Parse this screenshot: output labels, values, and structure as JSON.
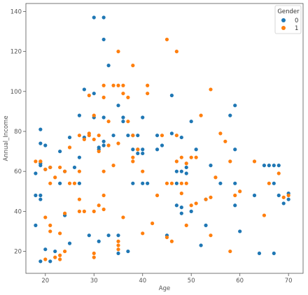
{
  "chart_data": {
    "type": "scatter",
    "xlabel": "Age",
    "ylabel": "Annual_Income",
    "xlim": [
      16,
      73
    ],
    "ylim": [
      9,
      144
    ],
    "xticks": [
      20,
      30,
      40,
      50,
      60,
      70
    ],
    "yticks": [
      20,
      40,
      60,
      80,
      100,
      120,
      140
    ],
    "grid": false,
    "legend": {
      "title": "Gender",
      "placement": "top-right",
      "entries": [
        {
          "label": "0",
          "color": "#1f77b4"
        },
        {
          "label": "1",
          "color": "#ff7f0e"
        }
      ]
    },
    "series": [
      {
        "name": "0",
        "color": "#1f77b4",
        "points": [
          [
            18,
            33
          ],
          [
            18,
            48
          ],
          [
            18,
            59
          ],
          [
            19,
            81
          ],
          [
            19,
            74
          ],
          [
            19,
            64
          ],
          [
            19,
            63
          ],
          [
            19,
            48
          ],
          [
            19,
            46
          ],
          [
            19,
            15
          ],
          [
            20,
            73
          ],
          [
            20,
            61
          ],
          [
            20,
            21
          ],
          [
            21,
            62
          ],
          [
            21,
            15
          ],
          [
            22,
            20
          ],
          [
            23,
            70
          ],
          [
            23,
            54
          ],
          [
            24,
            60
          ],
          [
            24,
            38
          ],
          [
            25,
            77
          ],
          [
            25,
            24
          ],
          [
            26,
            62
          ],
          [
            27,
            88
          ],
          [
            27,
            67
          ],
          [
            27,
            54
          ],
          [
            28,
            101
          ],
          [
            28,
            77
          ],
          [
            29,
            28
          ],
          [
            30,
            137
          ],
          [
            30,
            99
          ],
          [
            30,
            87
          ],
          [
            31,
            71
          ],
          [
            31,
            72
          ],
          [
            31,
            25
          ],
          [
            32,
            137
          ],
          [
            32,
            126
          ],
          [
            32,
            87
          ],
          [
            32,
            73
          ],
          [
            32,
            75
          ],
          [
            33,
            113
          ],
          [
            33,
            28
          ],
          [
            34,
            78
          ],
          [
            35,
            93
          ],
          [
            35,
            28
          ],
          [
            35,
            19
          ],
          [
            36,
            87
          ],
          [
            36,
            85
          ],
          [
            37,
            78
          ],
          [
            37,
            20
          ],
          [
            38,
            71
          ],
          [
            38,
            78
          ],
          [
            38,
            54
          ],
          [
            39,
            69
          ],
          [
            39,
            71
          ],
          [
            39,
            78
          ],
          [
            40,
            87
          ],
          [
            40,
            71
          ],
          [
            40,
            69
          ],
          [
            40,
            54
          ],
          [
            41,
            54
          ],
          [
            43,
            78
          ],
          [
            43,
            71
          ],
          [
            44,
            73
          ],
          [
            45,
            28
          ],
          [
            46,
            98
          ],
          [
            46,
            79
          ],
          [
            47,
            60
          ],
          [
            47,
            43
          ],
          [
            47,
            54
          ],
          [
            48,
            77
          ],
          [
            48,
            60
          ],
          [
            48,
            39
          ],
          [
            48,
            42
          ],
          [
            49,
            62
          ],
          [
            49,
            59
          ],
          [
            50,
            85
          ],
          [
            50,
            40
          ],
          [
            51,
            71
          ],
          [
            52,
            23
          ],
          [
            53,
            33
          ],
          [
            53,
            46
          ],
          [
            54,
            63
          ],
          [
            56,
            54
          ],
          [
            58,
            88
          ],
          [
            59,
            93
          ],
          [
            59,
            71
          ],
          [
            59,
            54
          ],
          [
            59,
            43
          ],
          [
            60,
            30
          ],
          [
            63,
            48
          ],
          [
            64,
            19
          ],
          [
            65,
            63
          ],
          [
            66,
            63
          ],
          [
            67,
            63
          ],
          [
            67,
            54
          ],
          [
            67,
            19
          ],
          [
            68,
            63
          ],
          [
            68,
            48
          ],
          [
            69,
            44
          ],
          [
            70,
            46
          ],
          [
            70,
            49
          ]
        ]
      },
      {
        "name": "1",
        "color": "#ff7f0e",
        "points": [
          [
            18,
            65
          ],
          [
            19,
            65
          ],
          [
            19,
            65
          ],
          [
            20,
            61
          ],
          [
            20,
            37
          ],
          [
            20,
            16
          ],
          [
            21,
            54
          ],
          [
            21,
            30
          ],
          [
            21,
            33
          ],
          [
            21,
            62
          ],
          [
            22,
            57
          ],
          [
            22,
            17
          ],
          [
            23,
            62
          ],
          [
            23,
            29
          ],
          [
            23,
            18
          ],
          [
            23,
            16
          ],
          [
            24,
            60
          ],
          [
            24,
            39
          ],
          [
            24,
            20
          ],
          [
            25,
            72
          ],
          [
            25,
            54
          ],
          [
            26,
            54
          ],
          [
            27,
            60
          ],
          [
            27,
            46
          ],
          [
            27,
            40
          ],
          [
            27,
            78
          ],
          [
            28,
            76
          ],
          [
            28,
            40
          ],
          [
            29,
            98
          ],
          [
            29,
            79
          ],
          [
            29,
            78
          ],
          [
            30,
            88
          ],
          [
            30,
            76
          ],
          [
            30,
            40
          ],
          [
            30,
            19
          ],
          [
            30,
            17
          ],
          [
            31,
            70
          ],
          [
            31,
            43
          ],
          [
            31,
            78
          ],
          [
            32,
            103
          ],
          [
            32,
            97
          ],
          [
            32,
            60
          ],
          [
            32,
            48
          ],
          [
            32,
            41
          ],
          [
            33,
            85
          ],
          [
            33,
            73
          ],
          [
            34,
            103
          ],
          [
            34,
            63
          ],
          [
            35,
            120
          ],
          [
            35,
            103
          ],
          [
            35,
            74
          ],
          [
            35,
            21
          ],
          [
            35,
            23
          ],
          [
            35,
            25
          ],
          [
            36,
            99
          ],
          [
            36,
            103
          ],
          [
            36,
            37
          ],
          [
            37,
            97
          ],
          [
            37,
            85
          ],
          [
            38,
            113
          ],
          [
            38,
            78
          ],
          [
            38,
            67
          ],
          [
            38,
            65
          ],
          [
            39,
            71
          ],
          [
            40,
            60
          ],
          [
            40,
            29
          ],
          [
            41,
            103
          ],
          [
            41,
            99
          ],
          [
            42,
            34
          ],
          [
            43,
            48
          ],
          [
            44,
            78
          ],
          [
            45,
            126
          ],
          [
            45,
            54
          ],
          [
            45,
            27
          ],
          [
            46,
            25
          ],
          [
            46,
            54
          ],
          [
            47,
            120
          ],
          [
            47,
            78
          ],
          [
            47,
            65
          ],
          [
            48,
            67
          ],
          [
            48,
            49
          ],
          [
            48,
            54
          ],
          [
            49,
            64
          ],
          [
            49,
            33
          ],
          [
            49,
            54
          ],
          [
            50,
            67
          ],
          [
            50,
            43
          ],
          [
            51,
            44
          ],
          [
            51,
            67
          ],
          [
            52,
            88
          ],
          [
            53,
            46
          ],
          [
            54,
            101
          ],
          [
            54,
            47
          ],
          [
            54,
            28
          ],
          [
            55,
            57
          ],
          [
            56,
            79
          ],
          [
            57,
            75
          ],
          [
            58,
            20
          ],
          [
            58,
            65
          ],
          [
            59,
            48
          ],
          [
            60,
            50
          ],
          [
            63,
            65
          ],
          [
            65,
            38
          ],
          [
            66,
            54
          ],
          [
            68,
            59
          ],
          [
            69,
            47
          ],
          [
            70,
            48
          ]
        ]
      }
    ]
  }
}
